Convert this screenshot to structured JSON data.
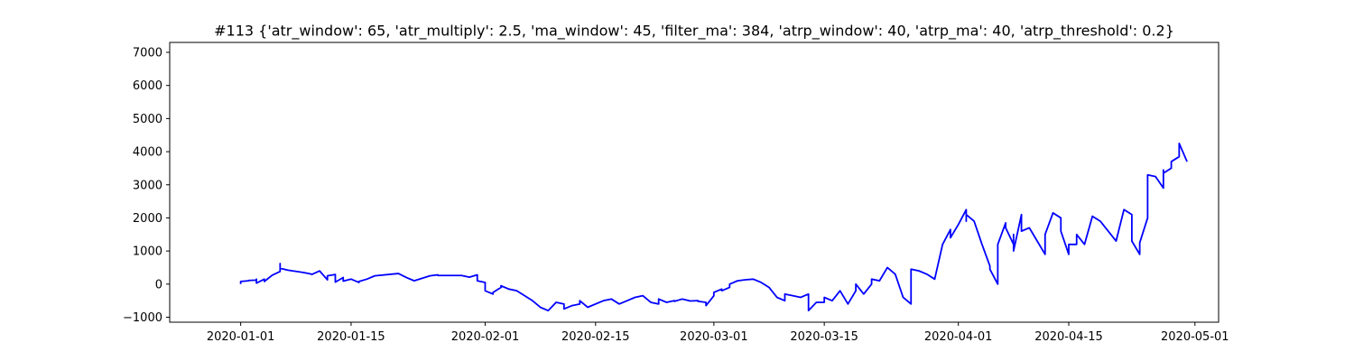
{
  "chart_data": {
    "type": "line",
    "title": "#113 {'atr_window': 65, 'atr_multiply': 2.5, 'ma_window': 45, 'filter_ma': 384, 'atrp_window': 40, 'atrp_ma': 40, 'atrp_threshold': 0.2}",
    "xlabel": "",
    "ylabel": "",
    "xlim": [
      "2019-12-23",
      "2020-05-04"
    ],
    "ylim": [
      -1150,
      7300
    ],
    "x_ticks": [
      "2020-01-01",
      "2020-01-15",
      "2020-02-01",
      "2020-02-15",
      "2020-03-01",
      "2020-03-15",
      "2020-04-01",
      "2020-04-15",
      "2020-05-01"
    ],
    "y_ticks": [
      -1000,
      0,
      1000,
      2000,
      3000,
      4000,
      5000,
      6000,
      7000
    ],
    "grid": false,
    "legend": "none",
    "colors": {
      "line": "#0000ff"
    },
    "series": [
      {
        "points": [
          [
            "2020-01-01",
            0
          ],
          [
            "2020-01-01",
            80
          ],
          [
            "2020-01-02",
            100
          ],
          [
            "2020-01-02",
            110
          ],
          [
            "2020-01-03",
            120
          ],
          [
            "2020-01-03",
            150
          ],
          [
            "2020-01-03",
            30
          ],
          [
            "2020-01-04",
            150
          ],
          [
            "2020-01-04",
            80
          ],
          [
            "2020-01-05",
            270
          ],
          [
            "2020-01-06",
            380
          ],
          [
            "2020-01-06",
            620
          ],
          [
            "2020-01-06",
            480
          ],
          [
            "2020-01-07",
            420
          ],
          [
            "2020-01-09",
            350
          ],
          [
            "2020-01-10",
            300
          ],
          [
            "2020-01-10",
            290
          ],
          [
            "2020-01-11",
            400
          ],
          [
            "2020-01-12",
            130
          ],
          [
            "2020-01-12",
            250
          ],
          [
            "2020-01-13",
            290
          ],
          [
            "2020-01-13",
            60
          ],
          [
            "2020-01-14",
            200
          ],
          [
            "2020-01-14",
            90
          ],
          [
            "2020-01-15",
            150
          ],
          [
            "2020-01-16",
            50
          ],
          [
            "2020-01-16",
            80
          ],
          [
            "2020-01-17",
            150
          ],
          [
            "2020-01-18",
            250
          ],
          [
            "2020-01-21",
            320
          ],
          [
            "2020-01-22",
            200
          ],
          [
            "2020-01-23",
            100
          ],
          [
            "2020-01-25",
            250
          ],
          [
            "2020-01-26",
            280
          ],
          [
            "2020-01-26",
            260
          ],
          [
            "2020-01-29",
            260
          ],
          [
            "2020-01-30",
            210
          ],
          [
            "2020-01-31",
            280
          ],
          [
            "2020-01-31",
            100
          ],
          [
            "2020-02-01",
            50
          ],
          [
            "2020-02-01",
            -200
          ],
          [
            "2020-02-02",
            -300
          ],
          [
            "2020-02-02",
            -250
          ],
          [
            "2020-02-03",
            -100
          ],
          [
            "2020-02-03",
            -50
          ],
          [
            "2020-02-04",
            -150
          ],
          [
            "2020-02-05",
            -200
          ],
          [
            "2020-02-06",
            -350
          ],
          [
            "2020-02-07",
            -500
          ],
          [
            "2020-02-08",
            -700
          ],
          [
            "2020-02-09",
            -800
          ],
          [
            "2020-02-10",
            -550
          ],
          [
            "2020-02-11",
            -600
          ],
          [
            "2020-02-11",
            -750
          ],
          [
            "2020-02-12",
            -650
          ],
          [
            "2020-02-13",
            -600
          ],
          [
            "2020-02-13",
            -500
          ],
          [
            "2020-02-14",
            -700
          ],
          [
            "2020-02-16",
            -500
          ],
          [
            "2020-02-17",
            -450
          ],
          [
            "2020-02-18",
            -600
          ],
          [
            "2020-02-19",
            -500
          ],
          [
            "2020-02-20",
            -400
          ],
          [
            "2020-02-21",
            -350
          ],
          [
            "2020-02-22",
            -550
          ],
          [
            "2020-02-23",
            -600
          ],
          [
            "2020-02-23",
            -450
          ],
          [
            "2020-02-24",
            -550
          ],
          [
            "2020-02-25",
            -500
          ],
          [
            "2020-02-25",
            -520
          ],
          [
            "2020-02-26",
            -450
          ],
          [
            "2020-02-27",
            -510
          ],
          [
            "2020-02-28",
            -500
          ],
          [
            "2020-02-28",
            -520
          ],
          [
            "2020-02-29",
            -550
          ],
          [
            "2020-02-29",
            -650
          ],
          [
            "2020-03-01",
            -350
          ],
          [
            "2020-03-01",
            -250
          ],
          [
            "2020-03-02",
            -150
          ],
          [
            "2020-03-02",
            -200
          ],
          [
            "2020-03-03",
            -100
          ],
          [
            "2020-03-03",
            0
          ],
          [
            "2020-03-04",
            100
          ],
          [
            "2020-03-05",
            130
          ],
          [
            "2020-03-06",
            150
          ],
          [
            "2020-03-07",
            50
          ],
          [
            "2020-03-08",
            -100
          ],
          [
            "2020-03-09",
            -400
          ],
          [
            "2020-03-10",
            -500
          ],
          [
            "2020-03-10",
            -300
          ],
          [
            "2020-03-11",
            -350
          ],
          [
            "2020-03-12",
            -400
          ],
          [
            "2020-03-13",
            -300
          ],
          [
            "2020-03-13",
            -800
          ],
          [
            "2020-03-14",
            -550
          ],
          [
            "2020-03-15",
            -550
          ],
          [
            "2020-03-15",
            -400
          ],
          [
            "2020-03-16",
            -500
          ],
          [
            "2020-03-17",
            -200
          ],
          [
            "2020-03-18",
            -600
          ],
          [
            "2020-03-19",
            -200
          ],
          [
            "2020-03-19",
            0
          ],
          [
            "2020-03-20",
            -300
          ],
          [
            "2020-03-21",
            0
          ],
          [
            "2020-03-21",
            150
          ],
          [
            "2020-03-22",
            100
          ],
          [
            "2020-03-23",
            500
          ],
          [
            "2020-03-24",
            300
          ],
          [
            "2020-03-25",
            -400
          ],
          [
            "2020-03-26",
            -600
          ],
          [
            "2020-03-26",
            -200
          ],
          [
            "2020-03-26",
            450
          ],
          [
            "2020-03-27",
            400
          ],
          [
            "2020-03-28",
            300
          ],
          [
            "2020-03-29",
            150
          ],
          [
            "2020-03-30",
            1200
          ],
          [
            "2020-03-31",
            1650
          ],
          [
            "2020-03-31",
            1400
          ],
          [
            "2020-04-01",
            1800
          ],
          [
            "2020-04-02",
            2250
          ],
          [
            "2020-04-02",
            1900
          ],
          [
            "2020-04-02",
            2100
          ],
          [
            "2020-04-03",
            1900
          ],
          [
            "2020-04-04",
            1200
          ],
          [
            "2020-04-05",
            550
          ],
          [
            "2020-04-05",
            450
          ],
          [
            "2020-04-06",
            0
          ],
          [
            "2020-04-06",
            500
          ],
          [
            "2020-04-06",
            1200
          ],
          [
            "2020-04-07",
            1850
          ],
          [
            "2020-04-07",
            1700
          ],
          [
            "2020-04-08",
            1200
          ],
          [
            "2020-04-08",
            1500
          ],
          [
            "2020-04-08",
            1000
          ],
          [
            "2020-04-09",
            2100
          ],
          [
            "2020-04-09",
            1600
          ],
          [
            "2020-04-10",
            1700
          ],
          [
            "2020-04-12",
            900
          ],
          [
            "2020-04-12",
            1500
          ],
          [
            "2020-04-13",
            2150
          ],
          [
            "2020-04-14",
            2000
          ],
          [
            "2020-04-14",
            1600
          ],
          [
            "2020-04-15",
            900
          ],
          [
            "2020-04-15",
            1200
          ],
          [
            "2020-04-16",
            1200
          ],
          [
            "2020-04-16",
            1500
          ],
          [
            "2020-04-17",
            1200
          ],
          [
            "2020-04-18",
            2050
          ],
          [
            "2020-04-19",
            1900
          ],
          [
            "2020-04-20",
            1600
          ],
          [
            "2020-04-21",
            1300
          ],
          [
            "2020-04-22",
            2250
          ],
          [
            "2020-04-23",
            2100
          ],
          [
            "2020-04-23",
            1700
          ],
          [
            "2020-04-23",
            1300
          ],
          [
            "2020-04-24",
            900
          ],
          [
            "2020-04-24",
            1250
          ],
          [
            "2020-04-25",
            2000
          ],
          [
            "2020-04-25",
            3300
          ],
          [
            "2020-04-26",
            3250
          ],
          [
            "2020-04-27",
            2900
          ],
          [
            "2020-04-27",
            3450
          ],
          [
            "2020-04-27",
            3350
          ],
          [
            "2020-04-28",
            3500
          ],
          [
            "2020-04-28",
            3700
          ],
          [
            "2020-04-29",
            3850
          ],
          [
            "2020-04-29",
            4250
          ],
          [
            "2020-04-30",
            3700
          ]
        ]
      }
    ]
  }
}
